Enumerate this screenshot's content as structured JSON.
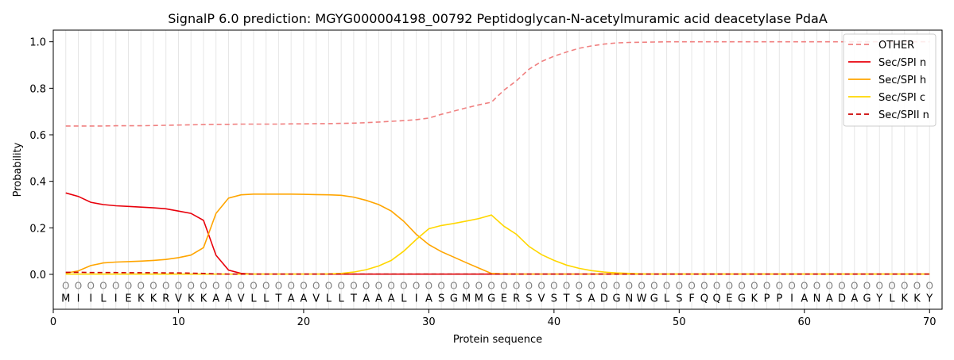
{
  "chart_data": {
    "type": "line",
    "title": "SignalP 6.0 prediction: MGYG000004198_00792 Peptidoglycan-N-acetylmuramic acid deacetylase PdaA",
    "xlabel": "Protein sequence",
    "ylabel": "Probability",
    "xlim": [
      0,
      71
    ],
    "ylim": [
      -0.15,
      1.05
    ],
    "xticks": [
      0,
      10,
      20,
      30,
      40,
      50,
      60,
      70
    ],
    "yticks": [
      0.0,
      0.2,
      0.4,
      0.6,
      0.8,
      1.0
    ],
    "grid": "vertical-per-residue",
    "legend_position": "top-right",
    "sequence": [
      "M",
      "I",
      "I",
      "L",
      "I",
      "E",
      "K",
      "K",
      "R",
      "V",
      "K",
      "K",
      "A",
      "A",
      "V",
      "L",
      "L",
      "T",
      "A",
      "A",
      "V",
      "L",
      "L",
      "T",
      "A",
      "A",
      "A",
      "L",
      "I",
      "A",
      "S",
      "G",
      "M",
      "M",
      "G",
      "E",
      "R",
      "S",
      "V",
      "S",
      "T",
      "S",
      "A",
      "D",
      "G",
      "N",
      "W",
      "G",
      "L",
      "S",
      "F",
      "Q",
      "Q",
      "E",
      "G",
      "K",
      "P",
      "P",
      "I",
      "A",
      "N",
      "A",
      "D",
      "A",
      "G",
      "Y",
      "L",
      "K",
      "K",
      "Y"
    ],
    "region_marker": "O",
    "x": [
      1,
      2,
      3,
      4,
      5,
      6,
      7,
      8,
      9,
      10,
      11,
      12,
      13,
      14,
      15,
      16,
      17,
      18,
      19,
      20,
      21,
      22,
      23,
      24,
      25,
      26,
      27,
      28,
      29,
      30,
      31,
      32,
      33,
      34,
      35,
      36,
      37,
      38,
      39,
      40,
      41,
      42,
      43,
      44,
      45,
      46,
      47,
      48,
      49,
      50,
      51,
      52,
      53,
      54,
      55,
      56,
      57,
      58,
      59,
      60,
      61,
      62,
      63,
      64,
      65,
      66,
      67,
      68,
      69,
      70
    ],
    "series": [
      {
        "name": "OTHER",
        "color": "#f08080",
        "dash": "dashed",
        "values": [
          0.638,
          0.638,
          0.638,
          0.638,
          0.639,
          0.639,
          0.639,
          0.64,
          0.641,
          0.642,
          0.643,
          0.644,
          0.645,
          0.645,
          0.646,
          0.646,
          0.646,
          0.646,
          0.647,
          0.647,
          0.648,
          0.648,
          0.649,
          0.65,
          0.652,
          0.655,
          0.658,
          0.661,
          0.665,
          0.672,
          0.688,
          0.702,
          0.716,
          0.729,
          0.74,
          0.792,
          0.832,
          0.882,
          0.915,
          0.938,
          0.956,
          0.972,
          0.982,
          0.99,
          0.995,
          0.997,
          0.998,
          0.999,
          1.0,
          1.0,
          1.0,
          1.0,
          1.0,
          1.0,
          1.0,
          1.0,
          1.0,
          1.0,
          1.0,
          1.0,
          1.0,
          1.0,
          1.0,
          1.0,
          1.0,
          1.0,
          1.0,
          1.0,
          1.0,
          1.0
        ]
      },
      {
        "name": "Sec/SPI n",
        "color": "#e8000b",
        "dash": "solid",
        "values": [
          0.35,
          0.335,
          0.31,
          0.3,
          0.295,
          0.292,
          0.289,
          0.286,
          0.282,
          0.272,
          0.262,
          0.232,
          0.082,
          0.018,
          0.004,
          0.001,
          0.001,
          0.001,
          0.001,
          0.001,
          0.001,
          0.001,
          0.001,
          0.001,
          0.001,
          0.001,
          0.001,
          0.001,
          0.001,
          0.001,
          0.001,
          0.001,
          0.001,
          0.001,
          0.001,
          0.001,
          0.001,
          0.001,
          0.001,
          0.001,
          0.001,
          0.001,
          0.001,
          0.001,
          0.001,
          0.001,
          0.001,
          0.001,
          0.001,
          0.001,
          0.001,
          0.001,
          0.001,
          0.001,
          0.001,
          0.001,
          0.001,
          0.001,
          0.001,
          0.001,
          0.001,
          0.001,
          0.001,
          0.001,
          0.001,
          0.001,
          0.001,
          0.001,
          0.001,
          0.001
        ]
      },
      {
        "name": "Sec/SPI h",
        "color": "#ffa500",
        "dash": "solid",
        "values": [
          0.005,
          0.015,
          0.038,
          0.049,
          0.053,
          0.055,
          0.057,
          0.06,
          0.064,
          0.072,
          0.083,
          0.115,
          0.262,
          0.328,
          0.342,
          0.345,
          0.345,
          0.345,
          0.345,
          0.344,
          0.343,
          0.342,
          0.34,
          0.332,
          0.318,
          0.3,
          0.272,
          0.228,
          0.172,
          0.128,
          0.098,
          0.074,
          0.05,
          0.027,
          0.004,
          0.002,
          0.001,
          0.001,
          0.001,
          0.001,
          0.001,
          0.001,
          0.001,
          0.001,
          0.001,
          0.001,
          0.001,
          0.001,
          0.001,
          0.001,
          0.001,
          0.001,
          0.001,
          0.001,
          0.001,
          0.001,
          0.001,
          0.001,
          0.001,
          0.001,
          0.001,
          0.001,
          0.001,
          0.001,
          0.001,
          0.001,
          0.001,
          0.001,
          0.001,
          0.001
        ]
      },
      {
        "name": "Sec/SPI c",
        "color": "#ffd700",
        "dash": "solid",
        "values": [
          0.001,
          0.001,
          0.001,
          0.001,
          0.001,
          0.001,
          0.001,
          0.001,
          0.001,
          0.001,
          0.001,
          0.001,
          0.001,
          0.001,
          0.001,
          0.001,
          0.001,
          0.001,
          0.001,
          0.001,
          0.001,
          0.002,
          0.004,
          0.01,
          0.02,
          0.036,
          0.06,
          0.1,
          0.15,
          0.196,
          0.21,
          0.219,
          0.229,
          0.24,
          0.255,
          0.207,
          0.172,
          0.12,
          0.085,
          0.06,
          0.04,
          0.026,
          0.016,
          0.01,
          0.006,
          0.004,
          0.002,
          0.001,
          0.001,
          0.001,
          0.001,
          0.001,
          0.001,
          0.001,
          0.001,
          0.001,
          0.001,
          0.001,
          0.001,
          0.001,
          0.001,
          0.001,
          0.001,
          0.001,
          0.001,
          0.001,
          0.001,
          0.001,
          0.001,
          0.001
        ]
      },
      {
        "name": "Sec/SPII n",
        "color": "#cc0000",
        "dash": "dashed",
        "values": [
          0.009,
          0.009,
          0.008,
          0.008,
          0.008,
          0.007,
          0.007,
          0.007,
          0.006,
          0.006,
          0.005,
          0.004,
          0.002,
          0.001,
          0.001,
          0.001,
          0.001,
          0.001,
          0.001,
          0.001,
          0.001,
          0.001,
          0.001,
          0.001,
          0.001,
          0.001,
          0.001,
          0.001,
          0.001,
          0.001,
          0.001,
          0.001,
          0.001,
          0.001,
          0.001,
          0.001,
          0.001,
          0.001,
          0.001,
          0.001,
          0.001,
          0.001,
          0.001,
          0.001,
          0.001,
          0.001,
          0.001,
          0.001,
          0.001,
          0.001,
          0.001,
          0.001,
          0.001,
          0.001,
          0.001,
          0.001,
          0.001,
          0.001,
          0.001,
          0.001,
          0.001,
          0.001,
          0.001,
          0.001,
          0.001,
          0.001,
          0.001,
          0.001,
          0.001,
          0.001
        ]
      }
    ]
  }
}
